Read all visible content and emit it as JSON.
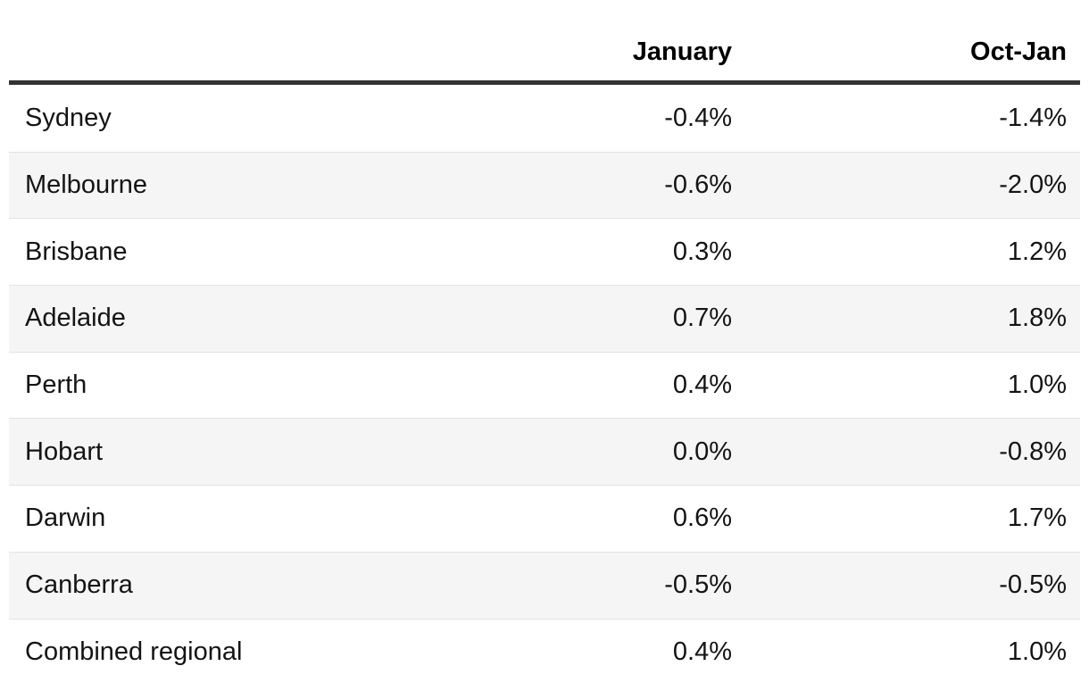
{
  "chart_data": {
    "type": "table",
    "title": "",
    "columns": [
      "",
      "January",
      "Oct-Jan"
    ],
    "categories": [
      "Sydney",
      "Melbourne",
      "Brisbane",
      "Adelaide",
      "Perth",
      "Hobart",
      "Darwin",
      "Canberra",
      "Combined regional"
    ],
    "series": [
      {
        "name": "January",
        "values": [
          -0.4,
          -0.6,
          0.3,
          0.7,
          0.4,
          0.0,
          0.6,
          -0.5,
          0.4
        ]
      },
      {
        "name": "Oct-Jan",
        "values": [
          -1.4,
          -2.0,
          1.2,
          1.8,
          1.0,
          -0.8,
          1.7,
          -0.5,
          1.0
        ]
      }
    ],
    "value_unit": "%"
  },
  "table": {
    "headers": {
      "col_january": "January",
      "col_octjan": "Oct-Jan"
    },
    "rows": [
      {
        "label": "Sydney",
        "january": "-0.4%",
        "oct_jan": "-1.4%"
      },
      {
        "label": "Melbourne",
        "january": "-0.6%",
        "oct_jan": "-2.0%"
      },
      {
        "label": "Brisbane",
        "january": "0.3%",
        "oct_jan": "1.2%"
      },
      {
        "label": "Adelaide",
        "january": "0.7%",
        "oct_jan": "1.8%"
      },
      {
        "label": "Perth",
        "january": "0.4%",
        "oct_jan": "1.0%"
      },
      {
        "label": "Hobart",
        "january": "0.0%",
        "oct_jan": "-0.8%"
      },
      {
        "label": "Darwin",
        "january": "0.6%",
        "oct_jan": "1.7%"
      },
      {
        "label": "Canberra",
        "january": "-0.5%",
        "oct_jan": "-0.5%"
      },
      {
        "label": "Combined regional",
        "january": "0.4%",
        "oct_jan": "1.0%"
      }
    ]
  },
  "colors": {
    "stripe_background": "#f5f5f5",
    "header_rule": "#343434",
    "row_divider": "#e3e3e3",
    "text": "#141414",
    "page_background": "#ffffff"
  }
}
